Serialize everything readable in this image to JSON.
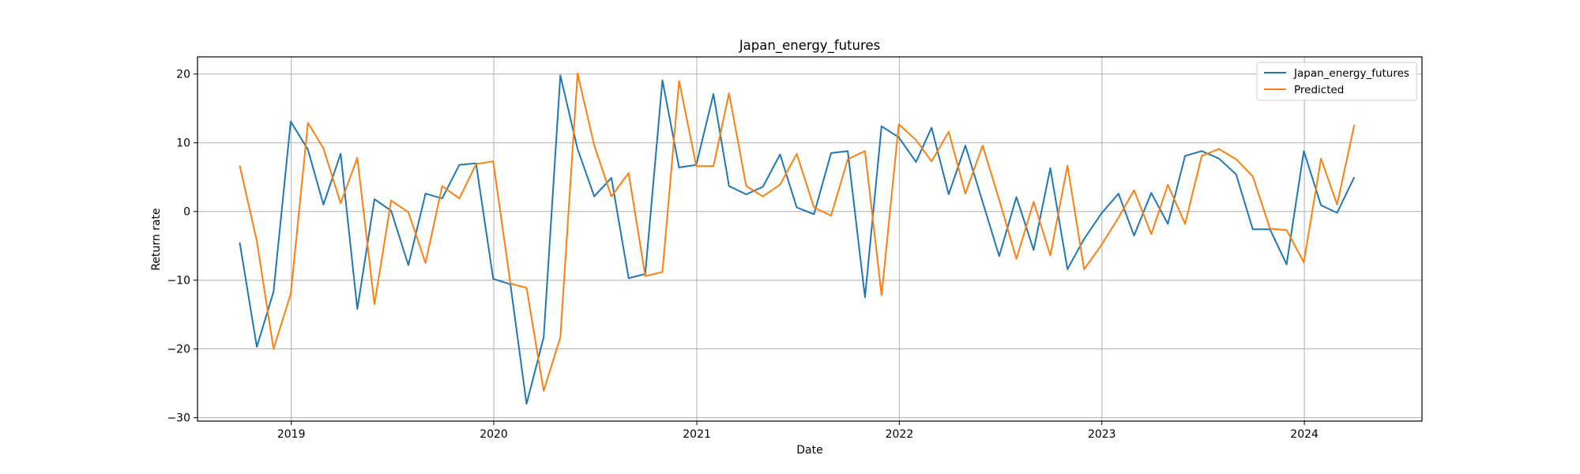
{
  "chart_data": {
    "type": "line",
    "title": "Japan_energy_futures",
    "xlabel": "Date",
    "ylabel": "Return rate",
    "x_ticks": [
      "2019",
      "2020",
      "2021",
      "2022",
      "2023",
      "2024"
    ],
    "y_ticks": [
      "−30",
      "−20",
      "−10",
      "0",
      "10",
      "20"
    ],
    "xlim": [
      "2018-07-16",
      "2024-07-31"
    ],
    "ylim": [
      -30.5,
      22.5
    ],
    "grid": true,
    "legend_position": "top-right",
    "x": [
      "2018-09-30",
      "2018-10-31",
      "2018-11-30",
      "2018-12-31",
      "2019-01-31",
      "2019-02-28",
      "2019-03-31",
      "2019-04-30",
      "2019-05-31",
      "2019-06-30",
      "2019-07-31",
      "2019-08-31",
      "2019-09-30",
      "2019-10-31",
      "2019-11-30",
      "2019-12-31",
      "2020-01-31",
      "2020-02-29",
      "2020-03-31",
      "2020-04-30",
      "2020-05-31",
      "2020-06-30",
      "2020-07-31",
      "2020-08-31",
      "2020-09-30",
      "2020-10-31",
      "2020-11-30",
      "2020-12-31",
      "2021-01-31",
      "2021-02-28",
      "2021-03-31",
      "2021-04-30",
      "2021-05-31",
      "2021-06-30",
      "2021-07-31",
      "2021-08-31",
      "2021-09-30",
      "2021-10-31",
      "2021-11-30",
      "2021-12-31",
      "2022-01-31",
      "2022-02-28",
      "2022-03-31",
      "2022-04-30",
      "2022-05-31",
      "2022-06-30",
      "2022-07-31",
      "2022-08-31",
      "2022-09-30",
      "2022-10-31",
      "2022-11-30",
      "2022-12-31",
      "2023-01-31",
      "2023-02-28",
      "2023-03-31",
      "2023-04-30",
      "2023-05-31",
      "2023-06-30",
      "2023-07-31",
      "2023-08-31",
      "2023-09-30",
      "2023-10-31",
      "2023-11-30",
      "2023-12-31",
      "2024-01-31",
      "2024-02-29",
      "2024-03-31"
    ],
    "series": [
      {
        "name": "Japan_energy_futures",
        "color": "#1f77b4",
        "values": [
          -4.5,
          -19.7,
          -11.7,
          13.1,
          9.0,
          1.0,
          8.4,
          -14.2,
          1.8,
          0.1,
          -7.8,
          2.6,
          1.9,
          6.8,
          7.0,
          -9.8,
          -10.6,
          -28.0,
          -18.3,
          19.8,
          9.1,
          2.2,
          4.9,
          -9.7,
          -9.1,
          19.1,
          6.4,
          6.8,
          17.1,
          3.7,
          2.5,
          3.6,
          8.3,
          0.6,
          -0.4,
          8.5,
          8.8,
          -12.5,
          12.4,
          10.8,
          7.2,
          12.2,
          2.5,
          9.6,
          1.4,
          -6.5,
          2.1,
          -5.6,
          6.3,
          -8.4,
          -4.0,
          -0.3,
          2.6,
          -3.5,
          2.7,
          -1.8,
          8.1,
          8.8,
          7.7,
          5.4,
          -2.6,
          -2.6,
          -7.7,
          8.8,
          0.9,
          -0.2,
          5.0
        ]
      },
      {
        "name": "Predicted",
        "color": "#ff7f0e",
        "values": [
          6.7,
          -4.3,
          -20.0,
          -12.0,
          12.9,
          9.2,
          1.2,
          7.8,
          -13.5,
          1.6,
          -0.1,
          -7.5,
          3.7,
          1.9,
          6.9,
          7.3,
          -10.5,
          -11.1,
          -26.1,
          -18.3,
          20.1,
          9.6,
          2.2,
          5.6,
          -9.4,
          -8.8,
          19.0,
          6.6,
          6.6,
          17.2,
          3.7,
          2.2,
          3.9,
          8.4,
          0.6,
          -0.6,
          7.6,
          8.8,
          -12.2,
          12.7,
          10.4,
          7.3,
          11.6,
          2.6,
          9.6,
          1.7,
          -6.9,
          1.4,
          -6.4,
          6.7,
          -8.4,
          -4.9,
          -0.9,
          3.1,
          -3.3,
          3.9,
          -1.8,
          8.1,
          9.1,
          7.6,
          5.1,
          -2.5,
          -2.7,
          -7.4,
          7.7,
          1.0,
          12.6
        ]
      }
    ]
  }
}
